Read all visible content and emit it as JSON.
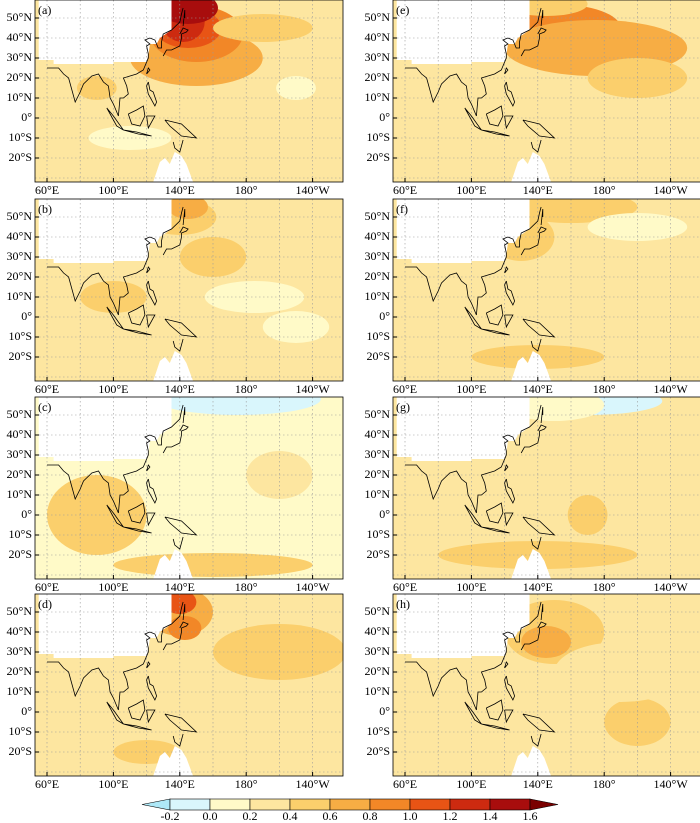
{
  "panels": [
    {
      "label": "(a)"
    },
    {
      "label": "(b)"
    },
    {
      "label": "(c)"
    },
    {
      "label": "(d)"
    },
    {
      "label": "(e)"
    },
    {
      "label": "(f)"
    },
    {
      "label": "(g)"
    },
    {
      "label": "(h)"
    }
  ],
  "lat_labels": [
    "50°N",
    "40°N",
    "30°N",
    "20°N",
    "10°N",
    "0°",
    "10°S",
    "20°S"
  ],
  "lon_labels": [
    "60°E",
    "100°E",
    "140°E",
    "180°",
    "140°W"
  ],
  "colorbar": {
    "ticks": [
      "-0.2",
      "0.0",
      "0.2",
      "0.4",
      "0.6",
      "0.8",
      "1.0",
      "1.2",
      "1.4",
      "1.6"
    ],
    "colors": [
      "#aee8f7",
      "#d9f6fc",
      "#fffac8",
      "#fde6a0",
      "#fbcf6c",
      "#f7ad44",
      "#f28727",
      "#e85415",
      "#cd2a10",
      "#a80d0d",
      "#7a0000"
    ]
  }
}
